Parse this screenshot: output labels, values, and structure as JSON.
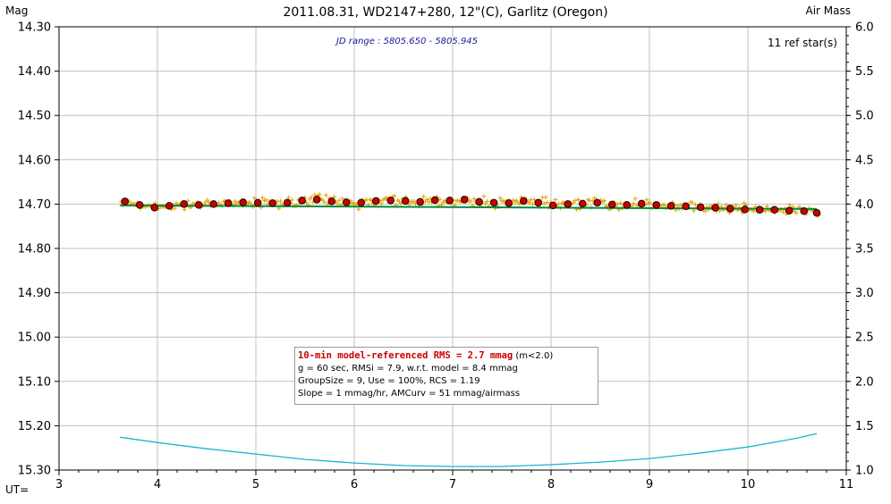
{
  "chart_data": {
    "type": "scatter",
    "title": "2011.08.31, WD2147+280, 12\"(C), Garlitz (Oregon)",
    "ylabel_left": "Mag",
    "ylabel_right": "Air Mass",
    "xlabel": "UT=",
    "xlim": [
      3,
      11
    ],
    "ylim_left": [
      15.3,
      14.3
    ],
    "ylim_right": [
      1.0,
      6.0
    ],
    "x_ticks": [
      "3",
      "4",
      "5",
      "6",
      "7",
      "8",
      "9",
      "10",
      "11"
    ],
    "y_ticks_left": [
      "14.30",
      "14.40",
      "14.50",
      "14.60",
      "14.70",
      "14.80",
      "14.90",
      "15.00",
      "15.10",
      "15.20",
      "15.30"
    ],
    "y_ticks_right": [
      "6.0",
      "5.5",
      "5.0",
      "4.5",
      "4.0",
      "3.5",
      "3.0",
      "2.5",
      "2.0",
      "1.5",
      "1.0"
    ],
    "grid": true,
    "jd_range_label": "JD range : 5805.650 - 5805.945",
    "ref_stars_label": "11 ref star(s)",
    "colors": {
      "raw_points": "#e8a000",
      "binned_points": "#cc0000",
      "model_line": "#008c3c",
      "airmass_curve": "#19b4d2",
      "grid": "#c0c0c0"
    },
    "binned": {
      "x": [
        3.67,
        3.82,
        3.97,
        4.12,
        4.27,
        4.42,
        4.57,
        4.72,
        4.87,
        5.02,
        5.17,
        5.32,
        5.47,
        5.62,
        5.77,
        5.92,
        6.07,
        6.22,
        6.37,
        6.52,
        6.67,
        6.82,
        6.97,
        7.12,
        7.27,
        7.42,
        7.57,
        7.72,
        7.87,
        8.02,
        8.17,
        8.32,
        8.47,
        8.62,
        8.77,
        8.92,
        9.07,
        9.22,
        9.37,
        9.52,
        9.67,
        9.82,
        9.97,
        10.12,
        10.27,
        10.42,
        10.57,
        10.7
      ],
      "y": [
        14.694,
        14.702,
        14.708,
        14.704,
        14.7,
        14.702,
        14.7,
        14.698,
        14.696,
        14.697,
        14.698,
        14.697,
        14.692,
        14.69,
        14.694,
        14.696,
        14.697,
        14.693,
        14.692,
        14.693,
        14.695,
        14.691,
        14.692,
        14.69,
        14.695,
        14.697,
        14.698,
        14.693,
        14.697,
        14.703,
        14.7,
        14.699,
        14.697,
        14.701,
        14.702,
        14.699,
        14.702,
        14.704,
        14.705,
        14.707,
        14.708,
        14.71,
        14.712,
        14.713,
        14.713,
        14.715,
        14.716,
        14.72
      ]
    },
    "model_line": {
      "x": [
        3.62,
        10.7
      ],
      "y": [
        14.703,
        14.711
      ]
    },
    "airmass_curve": {
      "x": [
        3.62,
        4.0,
        4.5,
        5.0,
        5.5,
        6.0,
        6.5,
        7.0,
        7.5,
        8.0,
        8.5,
        9.0,
        9.5,
        10.0,
        10.5,
        10.7
      ],
      "y": [
        1.37,
        1.31,
        1.24,
        1.18,
        1.12,
        1.08,
        1.05,
        1.04,
        1.04,
        1.06,
        1.09,
        1.13,
        1.19,
        1.26,
        1.36,
        1.41
      ]
    }
  },
  "stats": {
    "line1_highlight": "10-min model-referenced RMS = 2.7 mmag",
    "line1_suffix": " (m<2.0)",
    "line2": "g = 60 sec, RMSi = 7.9, w.r.t. model = 8.4 mmag",
    "line3": "GroupSize = 9, Use = 100%, RCS = 1.19",
    "line4": "Slope = 1 mmag/hr, AMCurv = 51 mmag/airmass"
  }
}
